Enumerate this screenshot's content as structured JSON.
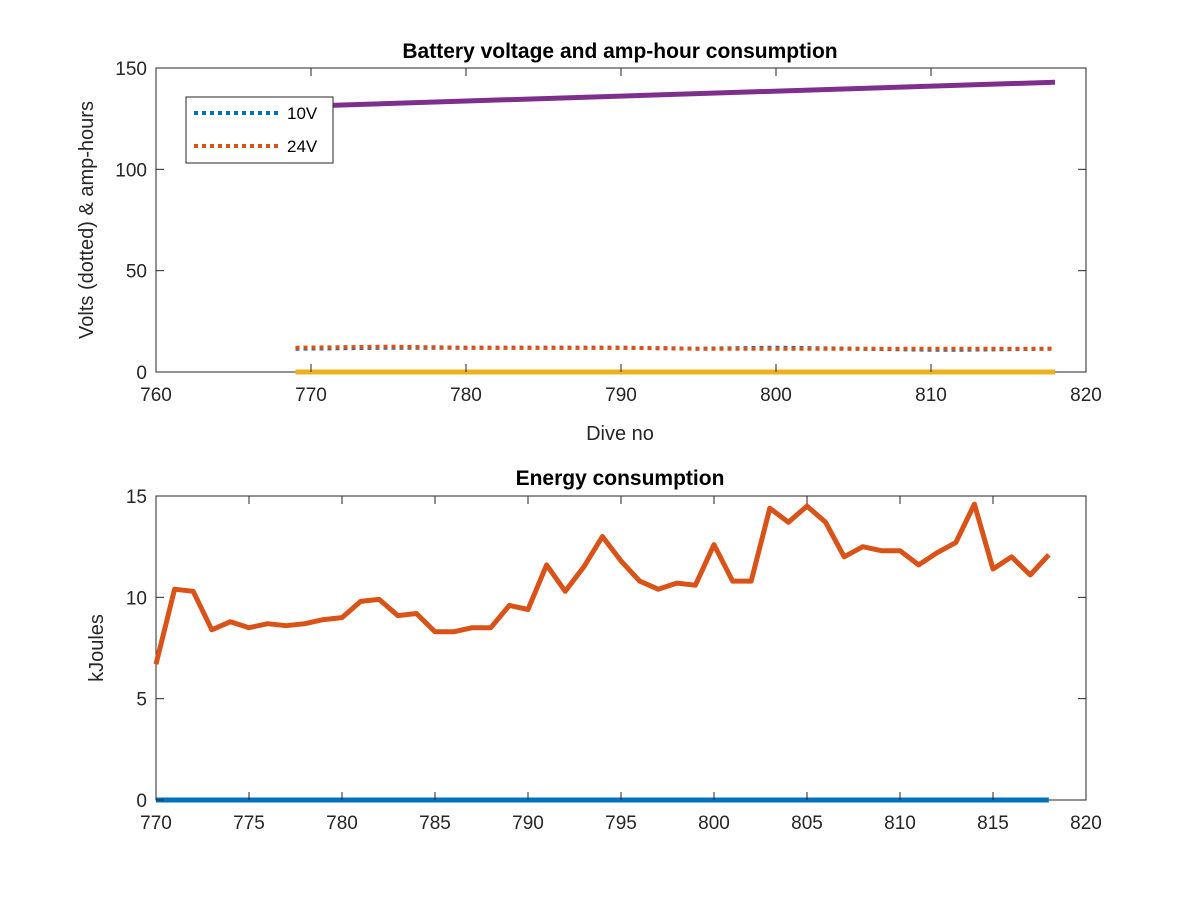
{
  "chart_data": [
    {
      "type": "line",
      "title": "Battery voltage and amp-hour consumption",
      "xlabel": "Dive no",
      "ylabel": "Volts (dotted) & amp-hours",
      "xlim": [
        760,
        820
      ],
      "ylim": [
        0,
        150
      ],
      "xticks": [
        760,
        770,
        780,
        790,
        800,
        810,
        820
      ],
      "yticks": [
        0,
        50,
        100,
        150
      ],
      "grid": false,
      "legend_position": "top-left",
      "series": [
        {
          "name": "10V",
          "style": "dotted",
          "color": "#0072BD",
          "x": [
            769,
            775,
            780,
            785,
            790,
            795,
            800,
            805,
            810,
            812,
            818
          ],
          "y": [
            11.5,
            12,
            12,
            12,
            12,
            11.5,
            12,
            11.5,
            11,
            11,
            11.5
          ]
        },
        {
          "name": "24V",
          "style": "dotted",
          "color": "#D95319",
          "x": [
            769,
            775,
            780,
            785,
            790,
            795,
            800,
            805,
            810,
            818
          ],
          "y": [
            12,
            12.5,
            12,
            12,
            12,
            11.5,
            11.5,
            11.5,
            11.5,
            11.5
          ]
        },
        {
          "style": "solid",
          "color": "#EDB120",
          "x": [
            769,
            818
          ],
          "y": [
            0,
            0
          ]
        },
        {
          "style": "solid",
          "color": "#7E2F8E",
          "x": [
            769,
            818
          ],
          "y": [
            131,
            143
          ]
        }
      ]
    },
    {
      "type": "line",
      "title": "Energy consumption",
      "xlabel": "",
      "ylabel": "kJoules",
      "xlim": [
        770,
        820
      ],
      "ylim": [
        0,
        15
      ],
      "xticks": [
        770,
        775,
        780,
        785,
        790,
        795,
        800,
        805,
        810,
        815,
        820
      ],
      "yticks": [
        0,
        5,
        10,
        15
      ],
      "grid": false,
      "series": [
        {
          "style": "solid",
          "color": "#0072BD",
          "x": [
            770,
            818
          ],
          "y": [
            0,
            0
          ]
        },
        {
          "style": "solid",
          "color": "#D95319",
          "x": [
            770,
            771,
            772,
            773,
            774,
            775,
            776,
            777,
            778,
            779,
            780,
            781,
            782,
            783,
            784,
            785,
            786,
            787,
            788,
            789,
            790,
            791,
            792,
            793,
            794,
            795,
            796,
            797,
            798,
            799,
            800,
            801,
            802,
            803,
            804,
            805,
            806,
            807,
            808,
            809,
            810,
            811,
            812,
            813,
            814,
            815,
            816,
            817,
            818
          ],
          "y": [
            6.7,
            10.4,
            10.3,
            8.4,
            8.8,
            8.5,
            8.7,
            8.6,
            8.7,
            8.9,
            9.0,
            9.8,
            9.9,
            9.1,
            9.2,
            8.3,
            8.3,
            8.5,
            8.5,
            9.6,
            9.4,
            11.6,
            10.3,
            11.5,
            13.0,
            11.8,
            10.8,
            10.4,
            10.7,
            10.6,
            12.6,
            10.8,
            10.8,
            14.4,
            13.7,
            14.5,
            13.7,
            12.0,
            12.5,
            12.3,
            12.3,
            11.6,
            12.2,
            12.7,
            14.6,
            11.4,
            12.0,
            11.1,
            12.1
          ]
        }
      ]
    }
  ]
}
